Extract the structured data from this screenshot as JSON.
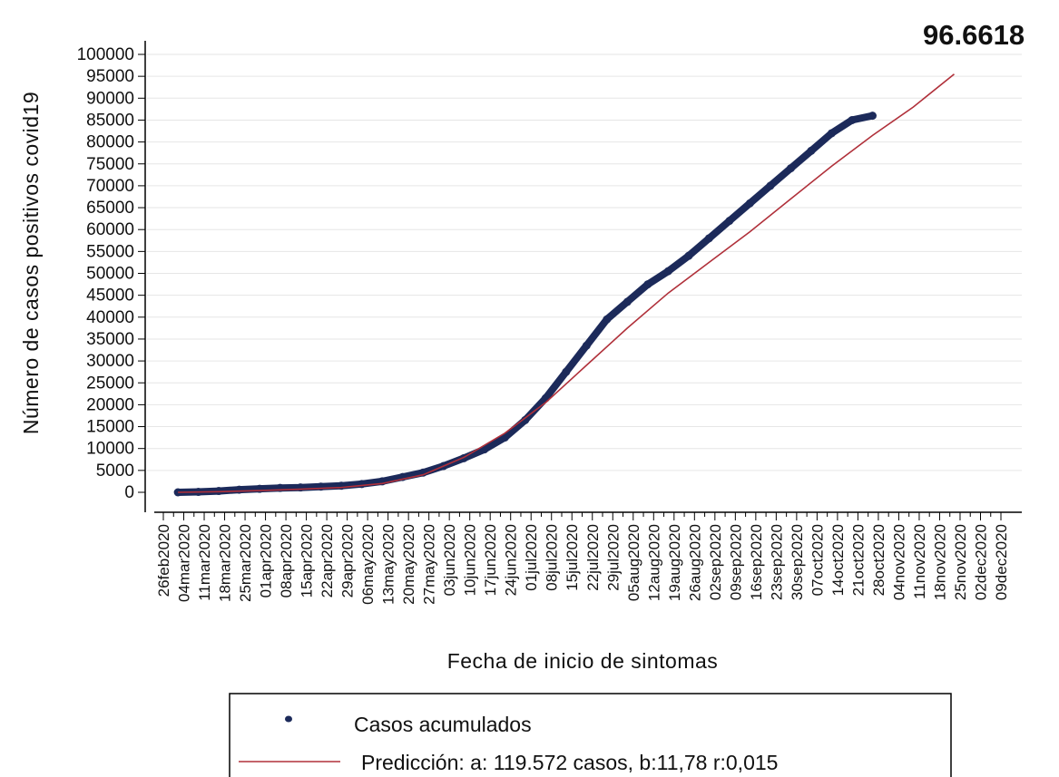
{
  "chart_data": {
    "type": "scatter",
    "title": "",
    "xlabel": "Fecha de inicio de sintomas",
    "ylabel": "Número de casos positivos covid19",
    "annotation": "96.6618",
    "ylim": [
      0,
      100000
    ],
    "y_ticks": [
      "100000",
      "95000",
      "90000",
      "85000",
      "80000",
      "75000",
      "70000",
      "65000",
      "60000",
      "55000",
      "50000",
      "45000",
      "40000",
      "35000",
      "30000",
      "25000",
      "20000",
      "15000",
      "10000",
      "5000",
      "0"
    ],
    "x_tick_labels": [
      "26feb2020",
      "04mar2020",
      "11mar2020",
      "18mar2020",
      "25mar2020",
      "01apr2020",
      "08apr2020",
      "15apr2020",
      "22apr2020",
      "29apr2020",
      "06may2020",
      "13may2020",
      "20may2020",
      "27may2020",
      "03jun2020",
      "10jun2020",
      "17jun2020",
      "24jun2020",
      "01jul2020",
      "08jul2020",
      "15jul2020",
      "22jul2020",
      "29jul2020",
      "05aug2020",
      "12aug2020",
      "19aug2020",
      "26aug2020",
      "02sep2020",
      "09sep2020",
      "16sep2020",
      "23sep2020",
      "30sep2020",
      "07oct2020",
      "14oct2020",
      "21oct2020",
      "28oct2020",
      "04nov2020",
      "11nov2020",
      "18nov2020",
      "25nov2020",
      "02dec2020",
      "09dec2020"
    ],
    "grid": true,
    "legend_position": "bottom",
    "series": [
      {
        "name": "Casos acumulados",
        "style": "markers",
        "color": "#1c2a5a",
        "x": [
          "2020-03-02",
          "2020-03-09",
          "2020-03-16",
          "2020-03-23",
          "2020-03-30",
          "2020-04-06",
          "2020-04-13",
          "2020-04-20",
          "2020-04-27",
          "2020-05-04",
          "2020-05-11",
          "2020-05-18",
          "2020-05-25",
          "2020-06-01",
          "2020-06-08",
          "2020-06-15",
          "2020-06-22",
          "2020-06-29",
          "2020-07-06",
          "2020-07-13",
          "2020-07-20",
          "2020-07-27",
          "2020-08-03",
          "2020-08-10",
          "2020-08-17",
          "2020-08-24",
          "2020-08-31",
          "2020-09-07",
          "2020-09-14",
          "2020-09-21",
          "2020-09-28",
          "2020-10-05",
          "2020-10-12",
          "2020-10-19",
          "2020-10-26"
        ],
        "y": [
          0,
          100,
          300,
          600,
          800,
          1000,
          1100,
          1300,
          1500,
          1900,
          2500,
          3500,
          4500,
          6000,
          7800,
          9800,
          12500,
          16500,
          21500,
          27500,
          33500,
          39500,
          43500,
          47500,
          50500,
          54000,
          58000,
          62000,
          66000,
          70000,
          74000,
          78000,
          82000,
          85000,
          86000
        ]
      },
      {
        "name": "Predicción: a: 119.572 casos, b:11,78 r:0,015",
        "style": "line",
        "color": "#b0303a",
        "x": [
          "2020-03-02",
          "2020-03-16",
          "2020-03-30",
          "2020-04-13",
          "2020-04-27",
          "2020-05-11",
          "2020-05-25",
          "2020-06-08",
          "2020-06-22",
          "2020-07-06",
          "2020-07-20",
          "2020-08-03",
          "2020-08-17",
          "2020-08-31",
          "2020-09-14",
          "2020-09-28",
          "2020-10-12",
          "2020-10-26",
          "2020-11-09",
          "2020-11-23"
        ],
        "y": [
          0,
          150,
          400,
          700,
          1100,
          2000,
          4000,
          8000,
          13500,
          20500,
          29000,
          37500,
          45500,
          52500,
          59500,
          67000,
          74500,
          81500,
          88000,
          95500
        ]
      }
    ]
  }
}
